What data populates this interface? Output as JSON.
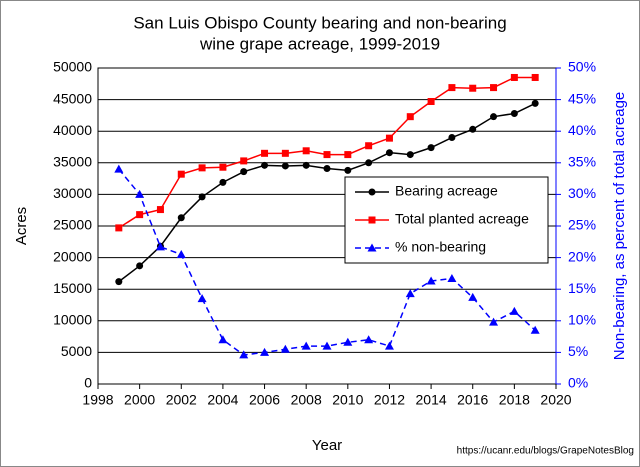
{
  "chart_data": {
    "type": "line",
    "title": [
      "San Luis Obispo County bearing and non-bearing",
      "wine grape acreage, 1999-2019"
    ],
    "x_label": "Year",
    "y_label": "Acres",
    "y2_label": "Non-bearing, as percent of total acreage",
    "source": "https://ucanr.edu/blogs/GrapeNotesBlog",
    "x": [
      1999,
      2000,
      2001,
      2002,
      2003,
      2004,
      2005,
      2006,
      2007,
      2008,
      2009,
      2010,
      2011,
      2012,
      2013,
      2014,
      2015,
      2016,
      2017,
      2018,
      2019
    ],
    "xlim": [
      1998,
      2020
    ],
    "xticks": [
      1998,
      2000,
      2002,
      2004,
      2006,
      2008,
      2010,
      2012,
      2014,
      2016,
      2018,
      2020
    ],
    "ylim": [
      0,
      50000
    ],
    "yticks": [
      0,
      5000,
      10000,
      15000,
      20000,
      25000,
      30000,
      35000,
      40000,
      45000,
      50000
    ],
    "y2lim": [
      0,
      50
    ],
    "y2ticks": [
      {
        "value": 0,
        "label": "0%"
      },
      {
        "value": 5,
        "label": "5%"
      },
      {
        "value": 10,
        "label": "10%"
      },
      {
        "value": 15,
        "label": "15%"
      },
      {
        "value": 20,
        "label": "20%"
      },
      {
        "value": 25,
        "label": "25%"
      },
      {
        "value": 30,
        "label": "30%"
      },
      {
        "value": 35,
        "label": "35%"
      },
      {
        "value": 40,
        "label": "40%"
      },
      {
        "value": 45,
        "label": "45%"
      },
      {
        "value": 50,
        "label": "50%"
      }
    ],
    "y2_color": "#0000ff",
    "series": [
      {
        "name": "Bearing acreage",
        "color": "#000000",
        "marker": "circle",
        "dashed": false,
        "values": [
          16200,
          18700,
          21800,
          26300,
          29600,
          31900,
          33600,
          34600,
          34500,
          34600,
          34100,
          33800,
          35000,
          36600,
          36300,
          37400,
          39000,
          40300,
          42300,
          42800,
          44400
        ]
      },
      {
        "name": "Total planted acreage",
        "color": "#ff0000",
        "marker": "square",
        "dashed": false,
        "values": [
          24700,
          26800,
          27600,
          33200,
          34200,
          34300,
          35300,
          36500,
          36500,
          36900,
          36300,
          36300,
          37700,
          38900,
          42300,
          44700,
          46900,
          46800,
          46900,
          48500,
          48500
        ]
      },
      {
        "name": "% non-bearing",
        "color": "#0000ff",
        "marker": "triangle",
        "dashed": true,
        "axis": "y2",
        "values": [
          34,
          30,
          21.7,
          20.5,
          13.5,
          7,
          4.6,
          5,
          5.5,
          6,
          6,
          6.6,
          7,
          6,
          14.3,
          16.3,
          16.7,
          13.7,
          9.8,
          11.5,
          8.5
        ]
      }
    ]
  }
}
